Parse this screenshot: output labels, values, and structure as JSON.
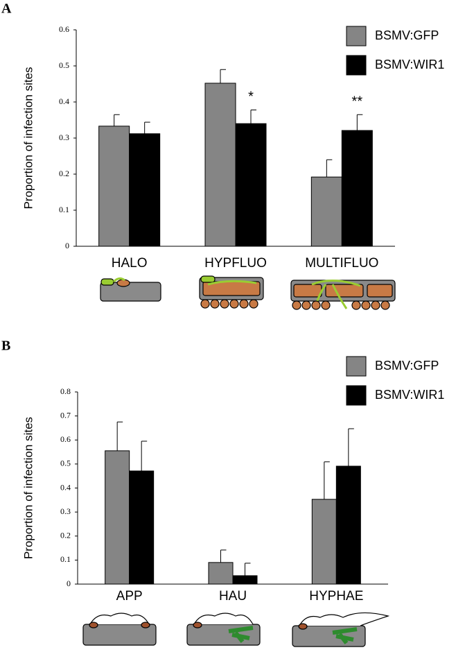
{
  "chart_data": [
    {
      "type": "bar",
      "panel": "A",
      "ylabel": "Proportion of infection sites",
      "categories": [
        "HALO",
        "HYPFLUO",
        "MULTIFLUO"
      ],
      "series": [
        {
          "name": "BSMV:GFP",
          "color": "#858585",
          "values": [
            0.333,
            0.452,
            0.192
          ],
          "errors": [
            0.032,
            0.038,
            0.048
          ]
        },
        {
          "name": "BSMV:WIR1",
          "color": "#000000",
          "values": [
            0.312,
            0.34,
            0.321
          ],
          "errors": [
            0.032,
            0.038,
            0.044
          ],
          "annotations": [
            null,
            "*",
            "**"
          ]
        }
      ],
      "ylim": [
        0,
        0.6
      ],
      "yticks": [
        0,
        0.1,
        0.2,
        0.3,
        0.4,
        0.5,
        0.6
      ]
    },
    {
      "type": "bar",
      "panel": "B",
      "ylabel": "Proportion of infection sites",
      "categories": [
        "APP",
        "HAU",
        "HYPHAE"
      ],
      "series": [
        {
          "name": "BSMV:GFP",
          "color": "#858585",
          "values": [
            0.555,
            0.09,
            0.353
          ],
          "errors": [
            0.12,
            0.052,
            0.156
          ]
        },
        {
          "name": "BSMV:WIR1",
          "color": "#000000",
          "values": [
            0.471,
            0.035,
            0.491
          ],
          "errors": [
            0.124,
            0.052,
            0.156
          ]
        }
      ],
      "ylim": [
        0,
        0.8
      ],
      "yticks": [
        0,
        0.1,
        0.2,
        0.3,
        0.4,
        0.5,
        0.6,
        0.7,
        0.8
      ]
    }
  ]
}
